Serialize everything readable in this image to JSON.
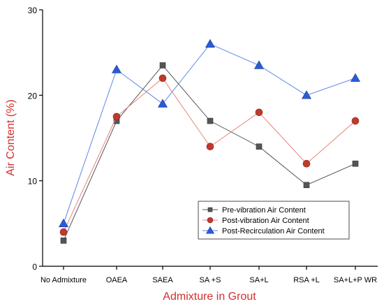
{
  "chart_data": {
    "type": "line",
    "xlabel": "Admixture in Grout",
    "ylabel": "Air Content (%)",
    "ylim": [
      0,
      30
    ],
    "yticks": [
      "0",
      "10",
      "20",
      "30"
    ],
    "categories": [
      "No Admixture",
      "OAEA",
      "SAEA",
      "SA +S",
      "SA+L",
      "RSA +L",
      "SA+L+P WR"
    ],
    "grid": false,
    "legend_position": "bottom-right",
    "colors": {
      "axis_title": "#d32f2f",
      "axes": "#000000"
    },
    "series": [
      {
        "name": "Pre-vibration Air Content",
        "marker": "square",
        "color": "#555555",
        "values": [
          3,
          17,
          23.5,
          17,
          14,
          9.5,
          12
        ]
      },
      {
        "name": "Post-vibration Air Content",
        "marker": "circle",
        "color": "#c0392b",
        "line_color": "#e8837a",
        "values": [
          4,
          17.5,
          22,
          14,
          18,
          12,
          17
        ]
      },
      {
        "name": "Post-Recirculation Air Content",
        "marker": "triangle",
        "color": "#2a5bd7",
        "line_color": "#5b86e5",
        "values": [
          5,
          23,
          19,
          26,
          23.5,
          20,
          22
        ]
      }
    ]
  }
}
